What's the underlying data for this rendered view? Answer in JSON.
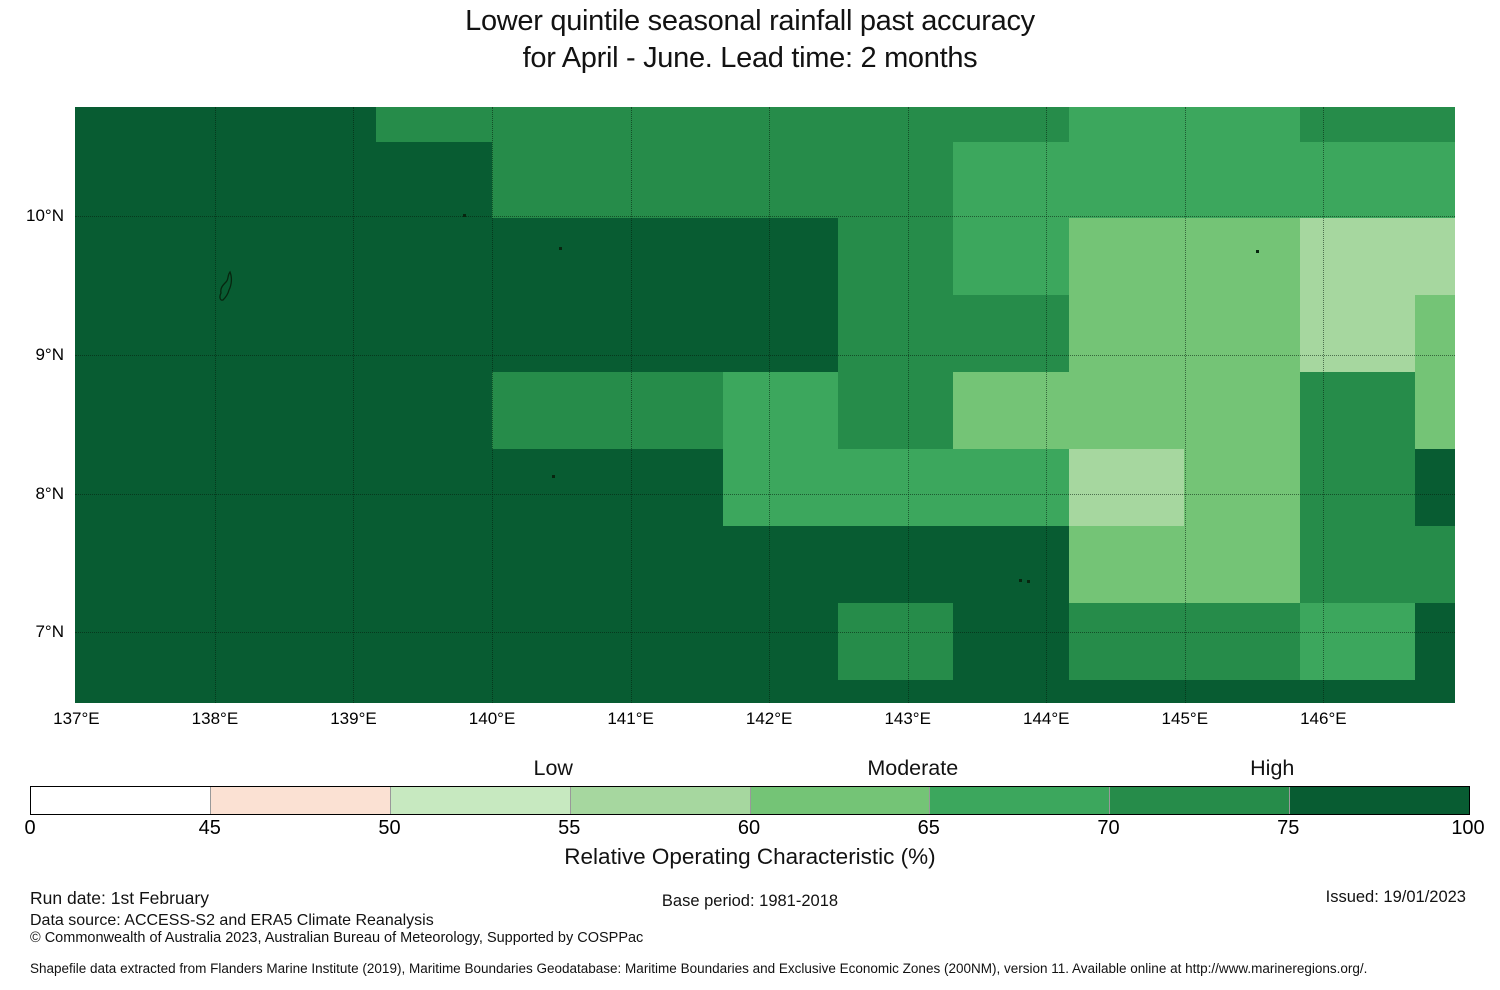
{
  "title": {
    "line1": "Lower quintile seasonal rainfall past accuracy",
    "line2": "for April - June. Lead time: 2 months"
  },
  "chart_data": {
    "type": "heatmap",
    "title": "Lower quintile seasonal rainfall past accuracy for April - June. Lead time: 2 months",
    "value_name": "Relative Operating Characteristic (%)",
    "lon_range": [
      136.99,
      146.95
    ],
    "lat_range": [
      6.49,
      10.79
    ],
    "col_edges_lon": [
      136.99,
      137.5,
      138.333,
      139.167,
      140.0,
      140.833,
      141.667,
      142.5,
      143.333,
      144.167,
      145.0,
      145.833,
      146.667,
      146.95
    ],
    "row_edges_lat": [
      10.79,
      10.536,
      9.986,
      9.431,
      8.875,
      8.32,
      7.764,
      7.209,
      6.653,
      6.49
    ],
    "bins": {
      "D": {
        "roc_range": "75-100",
        "color": "#085c32"
      },
      "M": {
        "roc_range": "70-75",
        "color": "#268c4a"
      },
      "B": {
        "roc_range": "65-70",
        "color": "#3ca75d"
      },
      "L": {
        "roc_range": "60-65",
        "color": "#74c476"
      },
      "P": {
        "roc_range": "55-60",
        "color": "#a6d79f"
      }
    },
    "grid_rows": [
      "DDDMMMMMMBBMM",
      "DDDDMMMMBBBBB",
      "DDDDDDDMBLLPP",
      "DDDDDDDMMLLPL",
      "DDDDMMBMLLLML",
      "DDDDDDBBBPLMD",
      "DDDDDDDDDLLMM",
      "DDDDDDDMDMMBD",
      "DDDDDDDDDDDDD"
    ],
    "xticks": [
      {
        "value": 137,
        "label": "137°E"
      },
      {
        "value": 138,
        "label": "138°E"
      },
      {
        "value": 139,
        "label": "139°E"
      },
      {
        "value": 140,
        "label": "140°E"
      },
      {
        "value": 141,
        "label": "141°E"
      },
      {
        "value": 142,
        "label": "142°E"
      },
      {
        "value": 143,
        "label": "143°E"
      },
      {
        "value": 144,
        "label": "144°E"
      },
      {
        "value": 145,
        "label": "145°E"
      },
      {
        "value": 146,
        "label": "146°E"
      }
    ],
    "yticks": [
      {
        "value": 10,
        "label": "10°N"
      },
      {
        "value": 9,
        "label": "9°N"
      },
      {
        "value": 8,
        "label": "8°N"
      },
      {
        "value": 7,
        "label": "7°N"
      }
    ],
    "islands": [
      {
        "lon": 138.09,
        "lat": 9.5,
        "kind": "outline"
      },
      {
        "lon": 139.8,
        "lat": 10.01,
        "kind": "dot"
      },
      {
        "lon": 140.49,
        "lat": 9.77,
        "kind": "dot"
      },
      {
        "lon": 145.52,
        "lat": 9.75,
        "kind": "dot"
      },
      {
        "lon": 140.44,
        "lat": 8.13,
        "kind": "dot"
      },
      {
        "lon": 143.81,
        "lat": 7.38,
        "kind": "dot"
      },
      {
        "lon": 143.87,
        "lat": 7.37,
        "kind": "dot"
      }
    ],
    "legend": {
      "axis_label": "Relative Operating Characteristic (%)",
      "ticks": [
        "0",
        "45",
        "50",
        "55",
        "60",
        "65",
        "70",
        "75",
        "100"
      ],
      "segments": [
        {
          "range": "0-45",
          "color": "#ffffff"
        },
        {
          "range": "45-50",
          "color": "#fbe1d3"
        },
        {
          "range": "50-55",
          "color": "#c7e9c0"
        },
        {
          "range": "55-60",
          "color": "#a6d79f"
        },
        {
          "range": "60-65",
          "color": "#74c476"
        },
        {
          "range": "65-70",
          "color": "#3ca75d"
        },
        {
          "range": "70-75",
          "color": "#268c4a"
        },
        {
          "range": "75-100",
          "color": "#085c32"
        }
      ],
      "categories": [
        {
          "label": "Low",
          "tick_index": 3
        },
        {
          "label": "Moderate",
          "tick_index": 5
        },
        {
          "label": "High",
          "tick_index": 7
        }
      ]
    }
  },
  "footer": {
    "run_date": "Run date: 1st February",
    "data_source": "Data source: ACCESS-S2 and ERA5 Climate Reanalysis",
    "copyright": "© Commonwealth of Australia 2023, Australian Bureau of Meteorology, Supported by COSPPac",
    "base_period": "Base period: 1981-2018",
    "issued": "Issued: 19/01/2023",
    "shapefile": "Shapefile data extracted from Flanders Marine Institute (2019), Maritime Boundaries Geodatabase: Maritime Boundaries and Exclusive Economic Zones (200NM), version 11. Available online at http://www.marineregions.org/."
  }
}
